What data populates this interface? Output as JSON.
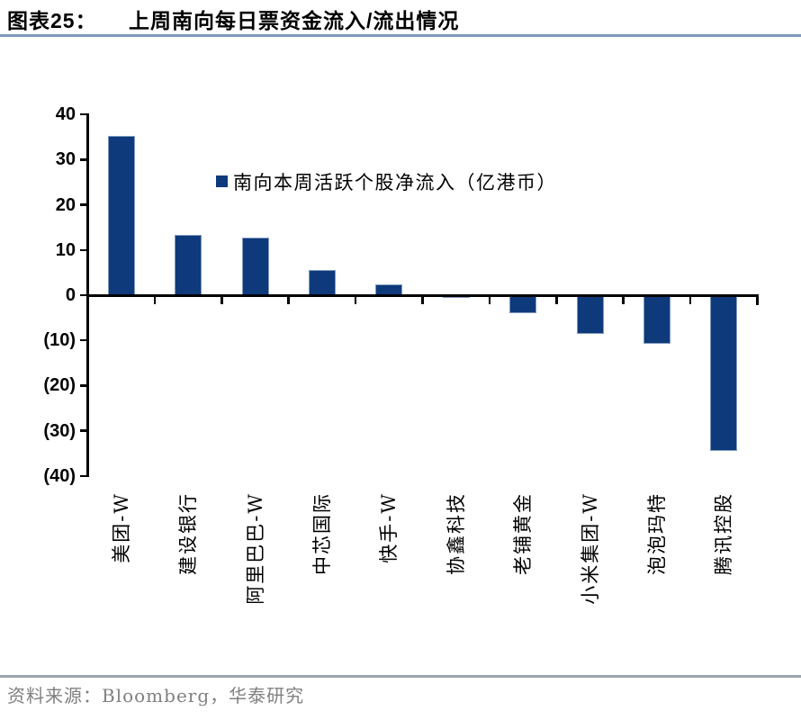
{
  "header": {
    "figure_label": "图表25：",
    "title": "上周南向每日票资金流入/流出情况"
  },
  "chart_data": {
    "type": "bar",
    "title": "上周南向每日票资金流入/流出情况",
    "legend": "南向本周活跃个股净流入（亿港币）",
    "unit": "亿港币",
    "categories": [
      "美团-W",
      "建设银行",
      "阿里巴巴-W",
      "中芯国际",
      "快手-W",
      "协鑫科技",
      "老铺黄金",
      "小米集团-W",
      "泡泡玛特",
      "腾讯控股"
    ],
    "values": [
      35.3,
      13.4,
      12.8,
      5.5,
      2.3,
      -0.6,
      -3.9,
      -8.6,
      -10.7,
      -34.4
    ],
    "xlabel": "",
    "ylabel": "",
    "ylim": [
      -40,
      40
    ],
    "y_tick_values": [
      40,
      30,
      20,
      10,
      0,
      -10,
      -20,
      -30,
      -40
    ],
    "y_tick_labels": [
      "40",
      "30",
      "20",
      "10",
      "0",
      "(10)",
      "(20)",
      "(30)",
      "(40)"
    ],
    "grid": false,
    "legend_position": "top-center"
  },
  "footer": {
    "source": "资料来源：Bloomberg，华泰研究"
  },
  "colors": {
    "bar_fill": "#0E3A7C",
    "bar_border": "#8099BD",
    "axis": "#000000",
    "title_rule": "#7E9ABA",
    "footer_rule": "#9CA3AF",
    "source_text": "#808080"
  }
}
